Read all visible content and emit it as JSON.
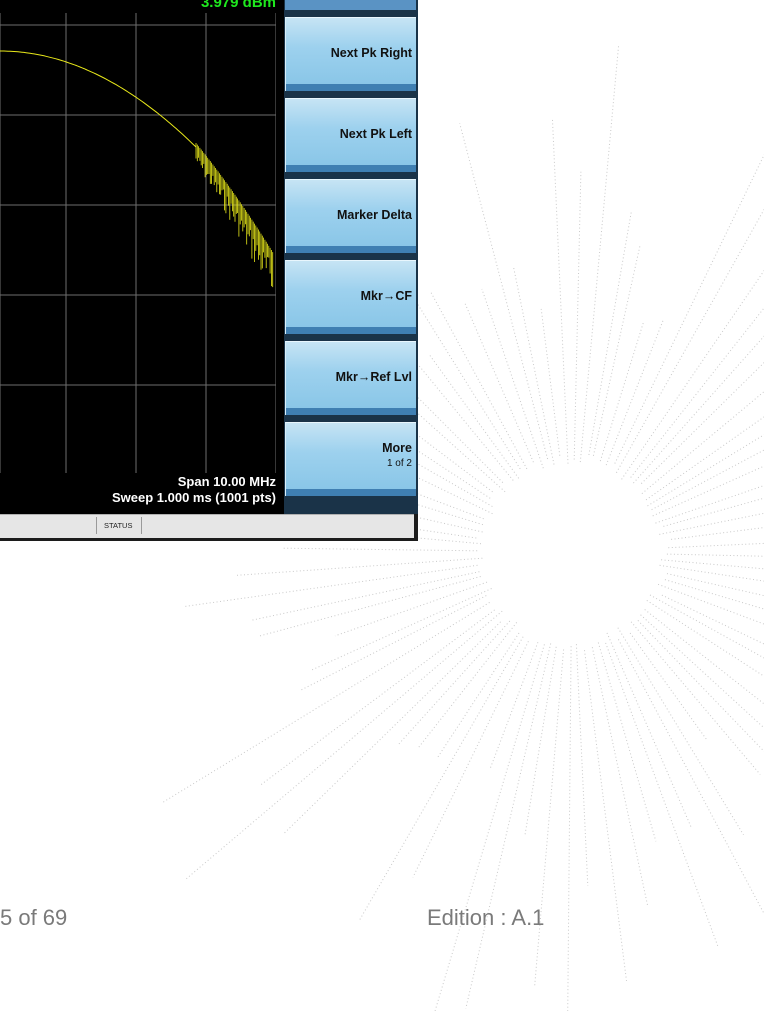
{
  "marker": {
    "readout": "3.979 dBm"
  },
  "display": {
    "span": "Span 10.00 MHz",
    "sweep": "Sweep  1.000 ms (1001 pts)"
  },
  "softkeys": [
    {
      "label": "Next Pk Right"
    },
    {
      "label": "Next Pk Left"
    },
    {
      "label": "Marker Delta"
    },
    {
      "label": "Mkr→CF"
    },
    {
      "label": "Mkr→Ref Lvl"
    },
    {
      "label": "More",
      "sublabel": "1 of 2"
    }
  ],
  "statusbar": {
    "status": "STATUS"
  },
  "footer": {
    "page": "5 of 69",
    "edition": "Edition : A.1"
  },
  "colors": {
    "trace": "#e8e81a",
    "marker_text": "#1ee81e",
    "grid": "#6e6e6e",
    "softkey_face": "#9dd1ee",
    "burst_dots": "#c9c9c9"
  }
}
